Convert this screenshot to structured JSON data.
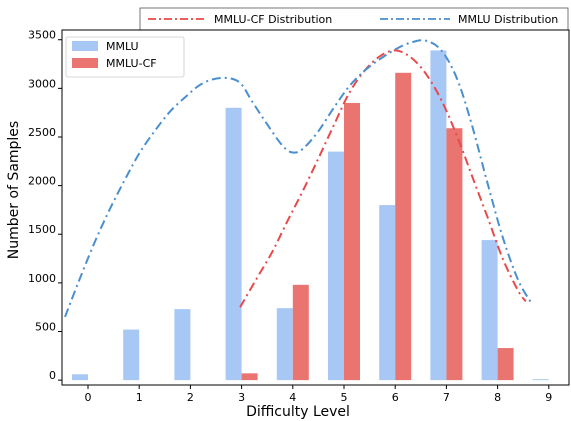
{
  "chart_data": {
    "type": "bar",
    "xlabel": "Difficulty Level",
    "ylabel": "Number of Samples",
    "categories": [
      "0",
      "1",
      "2",
      "3",
      "4",
      "5",
      "6",
      "7",
      "8",
      "9"
    ],
    "ylim": [
      -50,
      3600
    ],
    "yticks": [
      0,
      500,
      1000,
      1500,
      2000,
      2500,
      3000,
      3500
    ],
    "grid": false,
    "series": [
      {
        "name": "MMLU",
        "color": "#a7c8f5",
        "values": [
          60,
          520,
          730,
          2800,
          740,
          2350,
          1800,
          3390,
          1440,
          10
        ]
      },
      {
        "name": "MMLU-CF",
        "color": "#ea7570",
        "values": [
          0,
          0,
          0,
          70,
          980,
          2850,
          3160,
          2590,
          330,
          0
        ]
      }
    ],
    "curves": [
      {
        "name": "MMLU-CF Distribution",
        "color": "#e8494b",
        "style": "dash-dot",
        "x": [
          2.97,
          3.3,
          3.6,
          3.9,
          4.2,
          4.5,
          4.8,
          5.1,
          5.4,
          5.7,
          6.0,
          6.3,
          6.6,
          6.9,
          7.2,
          7.5,
          7.8,
          8.1,
          8.4,
          8.55
        ],
        "y": [
          750,
          1050,
          1320,
          1640,
          1950,
          2280,
          2620,
          2950,
          3180,
          3330,
          3390,
          3320,
          3150,
          2880,
          2520,
          2100,
          1680,
          1250,
          920,
          810
        ]
      },
      {
        "name": "MMLU Distribution",
        "color": "#4a8fce",
        "style": "dash-dot",
        "x": [
          -0.45,
          -0.2,
          0.1,
          0.4,
          0.7,
          1.0,
          1.3,
          1.6,
          1.9,
          2.2,
          2.5,
          2.8,
          3.0,
          3.2,
          3.5,
          3.8,
          4.0,
          4.2,
          4.5,
          4.8,
          5.1,
          5.4,
          5.7,
          6.0,
          6.3,
          6.6,
          6.9,
          7.2,
          7.5,
          7.8,
          8.1,
          8.4,
          8.65
        ],
        "y": [
          650,
          990,
          1380,
          1730,
          2040,
          2330,
          2560,
          2760,
          2910,
          3040,
          3100,
          3100,
          3040,
          2870,
          2630,
          2410,
          2340,
          2380,
          2560,
          2800,
          3020,
          3180,
          3300,
          3400,
          3470,
          3490,
          3390,
          3110,
          2620,
          2030,
          1470,
          1030,
          800
        ]
      }
    ]
  }
}
